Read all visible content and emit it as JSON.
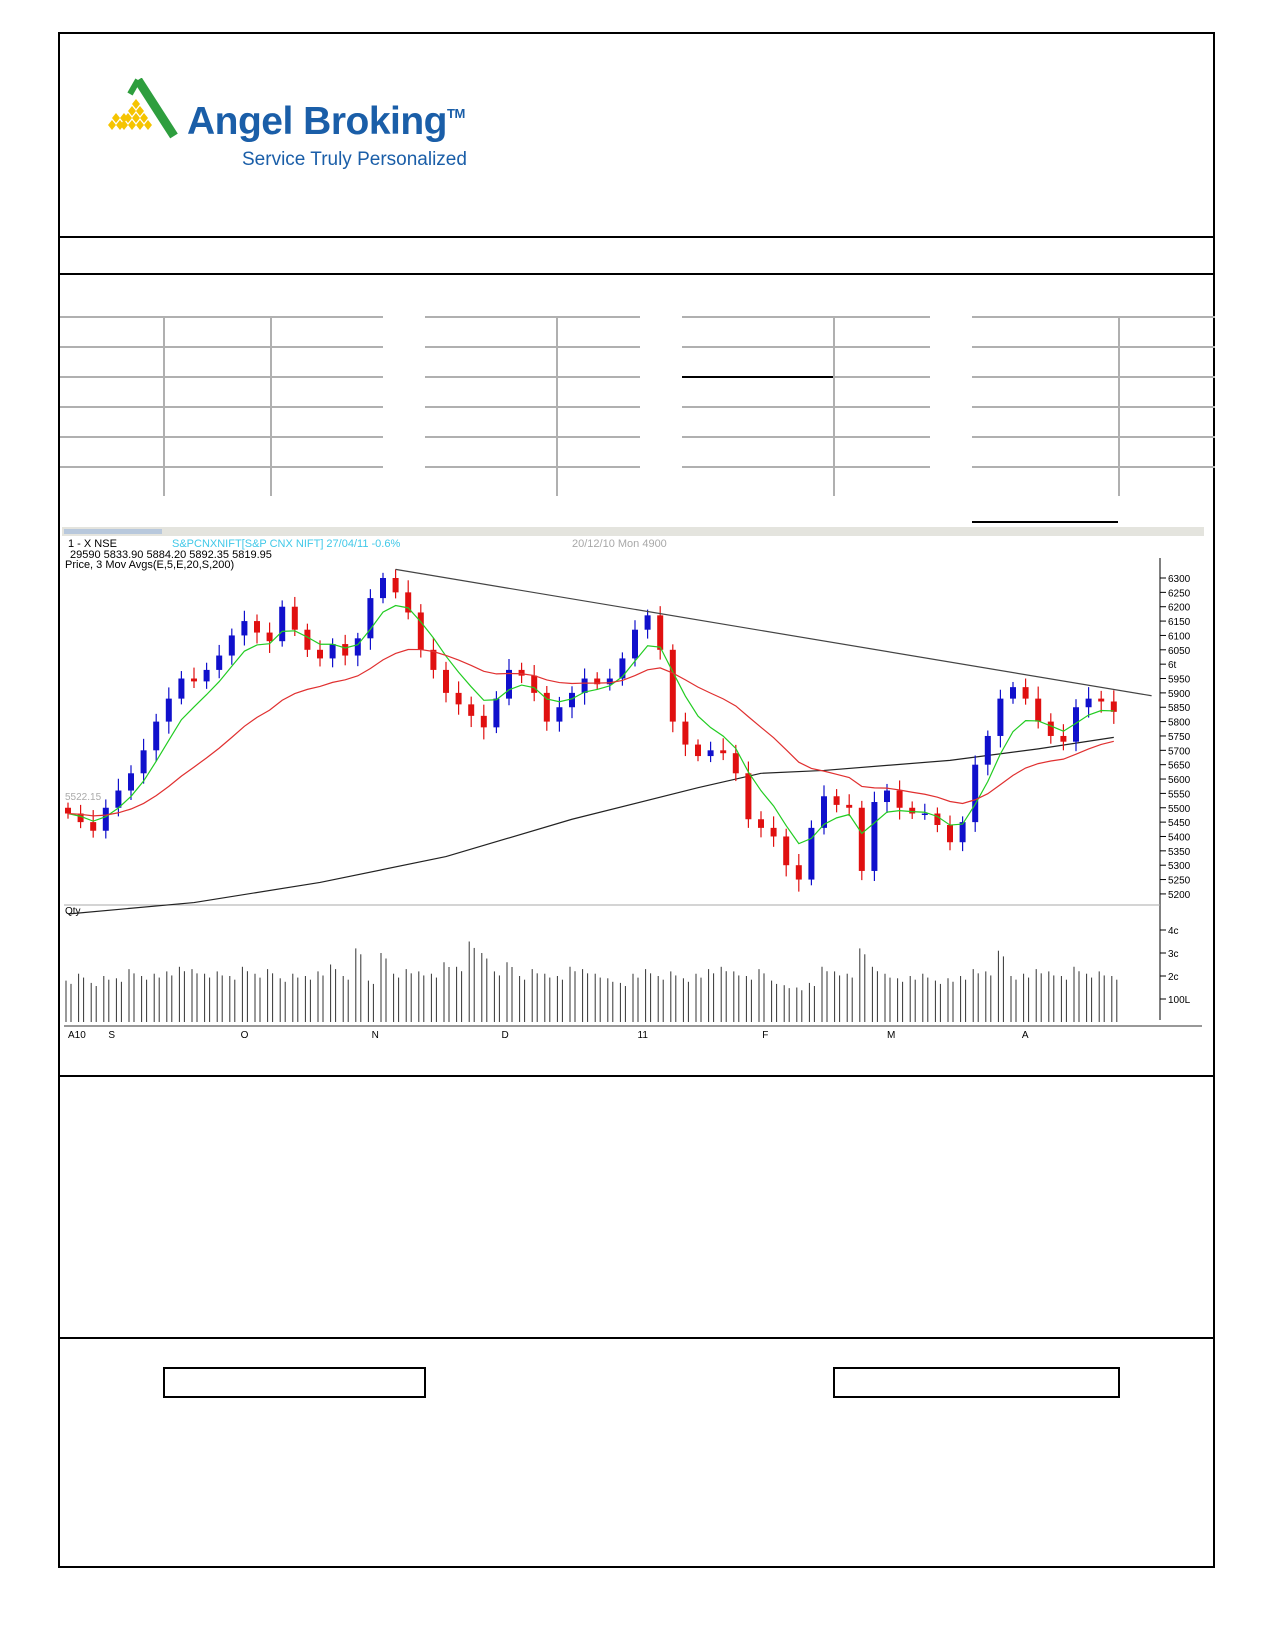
{
  "logo": {
    "brand": "Angel Broking",
    "trademark": "TM",
    "tagline": "Service Truly Personalized",
    "brand_color": "#1a5ea8",
    "mark_colors": [
      "#f5c400",
      "#2e9e3e"
    ]
  },
  "chart_data": {
    "type": "candlestick",
    "header": {
      "line1_prefix": "1 - X  NSE",
      "symbol": "S&PCNXNIFT[S&P CNX NIFT] 27/04/11 -0.6%",
      "cursor_info": "20/12/10 Mon 4900",
      "ohlc_line": "29590 5833.90 5884.20 5892.35 5819.95",
      "indicator_label": "Price, 3 Mov Avgs(E,5,E,20,S,200)"
    },
    "price_marker": "5522.15",
    "volume_label": "Qty",
    "ylim": [
      5170,
      6340
    ],
    "price_ticks": [
      "6300",
      "6250",
      "6200",
      "6150",
      "6100",
      "6050",
      "6t",
      "5950",
      "5900",
      "5850",
      "5800",
      "5750",
      "5700",
      "5650",
      "5600",
      "5550",
      "5500",
      "5450",
      "5400",
      "5350",
      "5300",
      "5250",
      "5200"
    ],
    "volume_ticks": [
      {
        "label": "4c",
        "value": 400
      },
      {
        "label": "3c",
        "value": 300
      },
      {
        "label": "2c",
        "value": 200
      },
      {
        "label": "100L",
        "value": 100
      }
    ],
    "x_ticks": [
      {
        "label": "A10",
        "index": 0
      },
      {
        "label": "S",
        "index": 3.2
      },
      {
        "label": "O",
        "index": 13.7
      },
      {
        "label": "N",
        "index": 24.1
      },
      {
        "label": "D",
        "index": 34.4
      },
      {
        "label": "11",
        "index": 45.2
      },
      {
        "label": "F",
        "index": 55.1
      },
      {
        "label": "M",
        "index": 65
      },
      {
        "label": "A",
        "index": 75.7
      }
    ],
    "closes": [
      5480,
      5450,
      5420,
      5500,
      5560,
      5620,
      5700,
      5800,
      5880,
      5950,
      5940,
      5980,
      6030,
      6100,
      6150,
      6110,
      6080,
      6200,
      6120,
      6050,
      6020,
      6070,
      6030,
      6090,
      6230,
      6300,
      6250,
      6180,
      6050,
      5980,
      5900,
      5860,
      5820,
      5780,
      5880,
      5980,
      5960,
      5900,
      5800,
      5850,
      5900,
      5950,
      5930,
      5950,
      6020,
      6120,
      6170,
      6050,
      5800,
      5720,
      5680,
      5700,
      5690,
      5620,
      5460,
      5430,
      5400,
      5300,
      5250,
      5430,
      5540,
      5510,
      5500,
      5280,
      5520,
      5560,
      5500,
      5480,
      5480,
      5440,
      5380,
      5450,
      5650,
      5750,
      5880,
      5920,
      5880,
      5800,
      5750,
      5730,
      5850,
      5880,
      5870,
      5834
    ],
    "volumes": [
      180,
      210,
      170,
      200,
      190,
      230,
      200,
      210,
      220,
      240,
      230,
      210,
      220,
      200,
      240,
      210,
      230,
      190,
      210,
      200,
      220,
      250,
      200,
      320,
      180,
      300,
      210,
      230,
      220,
      210,
      260,
      240,
      350,
      300,
      220,
      260,
      200,
      230,
      210,
      200,
      240,
      230,
      210,
      190,
      170,
      210,
      230,
      200,
      220,
      190,
      210,
      230,
      240,
      220,
      200,
      230,
      180,
      160,
      150,
      170,
      240,
      220,
      210,
      320,
      240,
      210,
      190,
      200,
      210,
      180,
      190,
      200,
      230,
      220,
      310,
      200,
      210,
      230,
      220,
      200,
      240,
      210,
      220,
      200
    ],
    "volume_color": "#000000",
    "series": [
      {
        "kind": "ema",
        "period": 5,
        "color": "#22cc22"
      },
      {
        "kind": "ema",
        "period": 20,
        "color": "#e03030"
      },
      {
        "kind": "sma",
        "period": 200,
        "color": "#222222",
        "points": [
          [
            0,
            5130
          ],
          [
            10,
            5170
          ],
          [
            20,
            5240
          ],
          [
            30,
            5330
          ],
          [
            40,
            5460
          ],
          [
            50,
            5570
          ],
          [
            55,
            5620
          ],
          [
            60,
            5630
          ],
          [
            70,
            5665
          ],
          [
            77,
            5705
          ],
          [
            83,
            5745
          ]
        ]
      }
    ],
    "trendline": {
      "from": [
        26,
        6330
      ],
      "to": [
        86,
        5890
      ],
      "color": "#444444"
    },
    "up_color": "#1010cc",
    "down_color": "#e01010"
  }
}
